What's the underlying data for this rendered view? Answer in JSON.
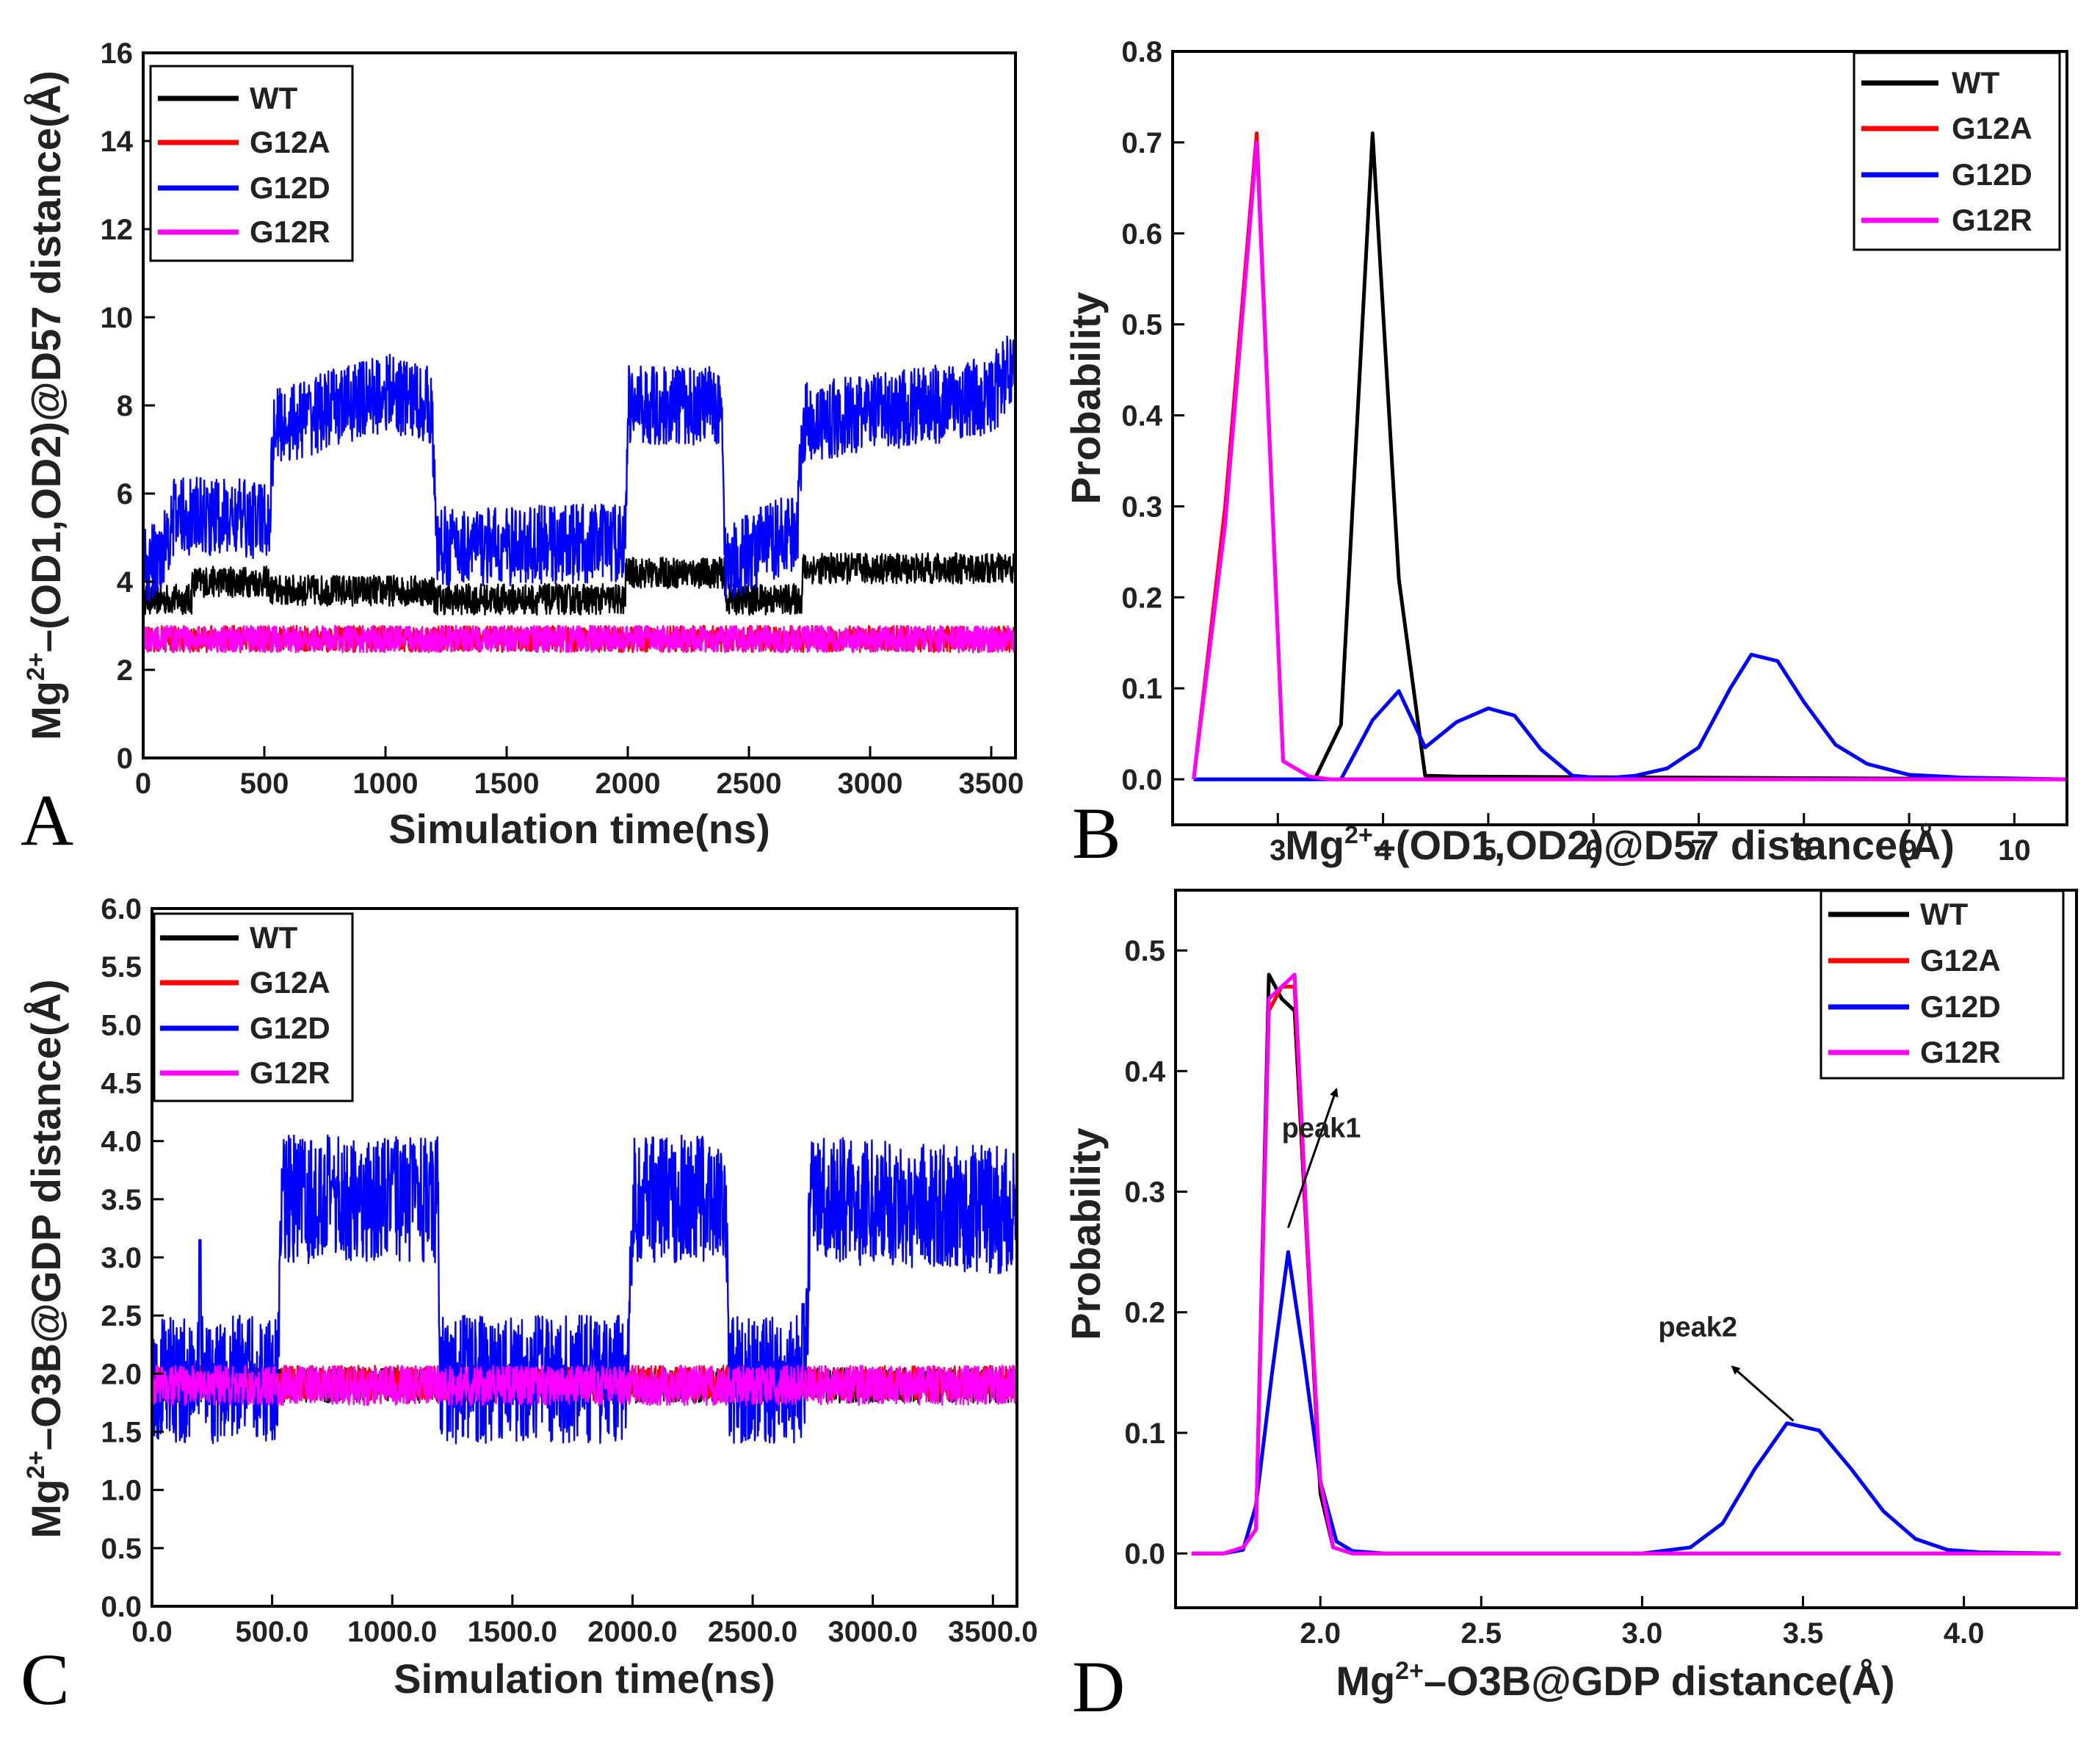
{
  "colors": {
    "WT": "#000000",
    "G12A": "#ff0000",
    "G12D": "#0000ff",
    "G12R": "#ff00ff"
  },
  "chart_data": [
    {
      "id": "A",
      "type": "line",
      "panel_label": "A",
      "xlabel": "Simulation time(ns)",
      "ylabel": {
        "pre": "Mg",
        "sup": "2+",
        "post": "–(OD1,OD2)@D57 distance(Å)"
      },
      "xlim": [
        0,
        3600
      ],
      "ylim": [
        0,
        16
      ],
      "xticks": [
        0,
        500,
        1000,
        1500,
        2000,
        2500,
        3000,
        3500
      ],
      "yticks": [
        0,
        2,
        4,
        6,
        8,
        10,
        12,
        14,
        16
      ],
      "legend_position": "top-left",
      "series": [
        {
          "name": "WT",
          "color": "#000000",
          "segments": [
            [
              0,
              3.6
            ],
            [
              200,
              3.6
            ],
            [
              200,
              4.0
            ],
            [
              520,
              4.0
            ],
            [
              520,
              3.8
            ],
            [
              1200,
              3.8
            ],
            [
              1200,
              3.6
            ],
            [
              1990,
              3.6
            ],
            [
              1990,
              4.2
            ],
            [
              2400,
              4.2
            ],
            [
              2400,
              3.6
            ],
            [
              2720,
              3.6
            ],
            [
              2720,
              4.3
            ],
            [
              3600,
              4.3
            ]
          ],
          "noise": 0.35
        },
        {
          "name": "G12A",
          "color": "#ff0000",
          "segments": [
            [
              0,
              2.7
            ],
            [
              3600,
              2.7
            ]
          ],
          "noise": 0.3
        },
        {
          "name": "G12D",
          "color": "#0000ff",
          "segments": [
            [
              0,
              4.3
            ],
            [
              60,
              4.5
            ],
            [
              130,
              5.5
            ],
            [
              520,
              5.4
            ],
            [
              540,
              7.5
            ],
            [
              1000,
              8.3
            ],
            [
              1190,
              8.0
            ],
            [
              1210,
              4.8
            ],
            [
              1500,
              4.8
            ],
            [
              1990,
              4.9
            ],
            [
              2000,
              8.0
            ],
            [
              2390,
              8.0
            ],
            [
              2400,
              4.4
            ],
            [
              2700,
              5.2
            ],
            [
              2720,
              7.6
            ],
            [
              3500,
              8.2
            ],
            [
              3600,
              9.0
            ]
          ],
          "noise": 0.9
        },
        {
          "name": "G12R",
          "color": "#ff00ff",
          "segments": [
            [
              0,
              2.7
            ],
            [
              3600,
              2.7
            ]
          ],
          "noise": 0.3
        }
      ]
    },
    {
      "id": "B",
      "type": "line",
      "panel_label": "B",
      "xlabel": {
        "pre": "Mg",
        "sup": "2+",
        "post": "–(OD1,OD2)@D57 distance(Å)"
      },
      "ylabel": "Probability",
      "xlim": [
        2.0,
        10.5
      ],
      "ylim": [
        -0.05,
        0.8
      ],
      "xticks": [
        3,
        4,
        5,
        6,
        7,
        8,
        9,
        10
      ],
      "yticks": [
        0.0,
        0.1,
        0.2,
        0.3,
        0.4,
        0.5,
        0.6,
        0.7,
        0.8
      ],
      "legend_position": "top-right",
      "series": [
        {
          "name": "WT",
          "color": "#000000",
          "x": [
            2.2,
            3.2,
            3.35,
            3.6,
            3.9,
            4.15,
            4.4,
            4.7,
            10.5
          ],
          "y": [
            0,
            0,
            0,
            0.06,
            0.71,
            0.22,
            0.004,
            0.003,
            0
          ]
        },
        {
          "name": "G12A",
          "color": "#ff0000",
          "x": [
            2.2,
            2.5,
            2.8,
            3.05,
            3.3,
            3.5,
            10.5
          ],
          "y": [
            0,
            0.3,
            0.71,
            0.02,
            0.003,
            0,
            0
          ]
        },
        {
          "name": "G12D",
          "color": "#0000ff",
          "x": [
            2.2,
            3.6,
            3.9,
            4.15,
            4.4,
            4.7,
            5.0,
            5.25,
            5.5,
            5.8,
            6.1,
            6.4,
            6.7,
            7.0,
            7.3,
            7.5,
            7.75,
            8.0,
            8.3,
            8.6,
            9.0,
            9.5,
            10.5
          ],
          "y": [
            0,
            0,
            0.065,
            0.097,
            0.035,
            0.063,
            0.078,
            0.07,
            0.033,
            0.004,
            0.001,
            0.004,
            0.012,
            0.035,
            0.1,
            0.137,
            0.13,
            0.085,
            0.038,
            0.017,
            0.005,
            0.002,
            0
          ]
        },
        {
          "name": "G12R",
          "color": "#ff00ff",
          "x": [
            2.2,
            2.5,
            2.8,
            3.05,
            3.3,
            3.5,
            10.5
          ],
          "y": [
            0,
            0.28,
            0.7,
            0.02,
            0.003,
            0,
            0
          ]
        }
      ]
    },
    {
      "id": "C",
      "type": "line",
      "panel_label": "C",
      "xlabel": "Simulation time(ns)",
      "ylabel": {
        "pre": "Mg",
        "sup": "2+",
        "post": "–O3B@GDP distance(Å)"
      },
      "xlim": [
        0,
        3600
      ],
      "ylim": [
        0,
        6.0
      ],
      "xticks": [
        0,
        500,
        1000,
        1500,
        2000,
        2500,
        3000,
        3500
      ],
      "yticks": [
        0.0,
        0.5,
        1.0,
        1.5,
        2.0,
        2.5,
        3.0,
        3.5,
        4.0,
        4.5,
        5.0,
        5.5,
        6.0
      ],
      "legend_position": "top-left",
      "series": [
        {
          "name": "WT",
          "color": "#000000",
          "segments": [
            [
              0,
              1.9
            ],
            [
              3600,
              1.9
            ]
          ],
          "noise": 0.15
        },
        {
          "name": "G12A",
          "color": "#ff0000",
          "segments": [
            [
              0,
              1.92
            ],
            [
              3600,
              1.92
            ]
          ],
          "noise": 0.15
        },
        {
          "name": "G12D",
          "color": "#0000ff",
          "segments": [
            [
              0,
              1.95
            ],
            [
              520,
              1.95
            ],
            [
              540,
              3.5
            ],
            [
              1190,
              3.5
            ],
            [
              1200,
              1.95
            ],
            [
              1980,
              1.95
            ],
            [
              2000,
              3.5
            ],
            [
              2390,
              3.5
            ],
            [
              2400,
              1.95
            ],
            [
              2720,
              1.95
            ],
            [
              2740,
              3.5
            ],
            [
              3600,
              3.4
            ]
          ],
          "noise": 0.55,
          "spikes": [
            [
              200,
              3.15
            ],
            [
              2710,
              2.6
            ]
          ]
        },
        {
          "name": "G12R",
          "color": "#ff00ff",
          "segments": [
            [
              0,
              1.9
            ],
            [
              3600,
              1.9
            ]
          ],
          "noise": 0.17
        }
      ]
    },
    {
      "id": "D",
      "type": "line",
      "panel_label": "D",
      "xlabel": {
        "pre": "Mg",
        "sup": "2+",
        "post": "–O3B@GDP distance(Å)"
      },
      "ylabel": "Probability",
      "xlim": [
        1.55,
        4.35
      ],
      "ylim": [
        -0.045,
        0.55
      ],
      "xticks": [
        2.0,
        2.5,
        3.0,
        3.5,
        4.0
      ],
      "yticks": [
        0.0,
        0.1,
        0.2,
        0.3,
        0.4,
        0.5
      ],
      "legend_position": "top-right",
      "annotations": [
        {
          "text": "peak1",
          "x": 1.88,
          "y": 0.345,
          "arrow_from": [
            1.9,
            0.27
          ],
          "arrow_to": [
            2.05,
            0.385
          ]
        },
        {
          "text": "peak2",
          "x": 3.05,
          "y": 0.18,
          "arrow_from": [
            3.47,
            0.11
          ],
          "arrow_to": [
            3.28,
            0.155
          ]
        }
      ],
      "series": [
        {
          "name": "WT",
          "color": "#000000",
          "x": [
            1.6,
            1.7,
            1.76,
            1.8,
            1.84,
            1.88,
            1.92,
            1.96,
            2.0,
            2.04,
            2.1,
            4.3
          ],
          "y": [
            0,
            0,
            0.005,
            0.02,
            0.48,
            0.46,
            0.45,
            0.25,
            0.05,
            0.005,
            0,
            0
          ]
        },
        {
          "name": "G12A",
          "color": "#ff0000",
          "x": [
            1.6,
            1.7,
            1.76,
            1.8,
            1.84,
            1.88,
            1.92,
            1.96,
            2.0,
            2.04,
            2.1,
            4.3
          ],
          "y": [
            0,
            0,
            0.005,
            0.02,
            0.45,
            0.47,
            0.47,
            0.25,
            0.06,
            0.005,
            0,
            0
          ]
        },
        {
          "name": "G12D",
          "color": "#0000ff",
          "x": [
            1.6,
            1.7,
            1.76,
            1.8,
            1.85,
            1.9,
            1.95,
            2.0,
            2.05,
            2.1,
            2.2,
            3.0,
            3.15,
            3.25,
            3.35,
            3.45,
            3.55,
            3.65,
            3.75,
            3.85,
            3.95,
            4.05,
            4.3
          ],
          "y": [
            0,
            0,
            0.003,
            0.04,
            0.15,
            0.25,
            0.16,
            0.06,
            0.01,
            0.002,
            0,
            0,
            0.005,
            0.025,
            0.07,
            0.108,
            0.102,
            0.07,
            0.035,
            0.012,
            0.003,
            0.001,
            0
          ]
        },
        {
          "name": "G12R",
          "color": "#ff00ff",
          "x": [
            1.6,
            1.7,
            1.76,
            1.8,
            1.84,
            1.88,
            1.92,
            1.96,
            2.0,
            2.04,
            2.1,
            4.3
          ],
          "y": [
            0,
            0,
            0.005,
            0.02,
            0.46,
            0.47,
            0.48,
            0.26,
            0.06,
            0.005,
            0,
            0
          ]
        }
      ]
    }
  ]
}
